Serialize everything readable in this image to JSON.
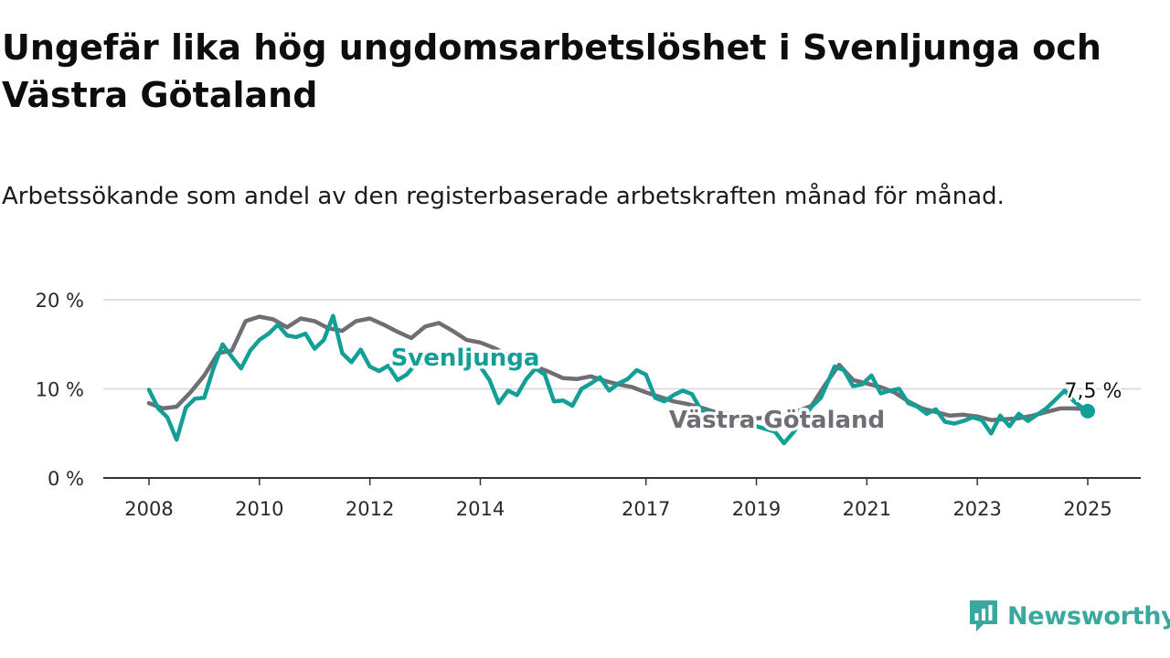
{
  "title": "Ungefär lika hög ungdomsarbetslöshet i Svenljunga och Västra Götaland",
  "subtitle": "Arbetssökande som andel av den registerbaserade arbetskraften månad för månad.",
  "brand": {
    "name": "Newsworthy",
    "icon": "newsworthy-logo-icon",
    "color": "#3aa89e"
  },
  "chart_data": {
    "type": "line",
    "x_ticks": [
      "2008",
      "2010",
      "2012",
      "2014",
      "2017",
      "2019",
      "2021",
      "2023",
      "2025"
    ],
    "y_ticks": [
      "0 %",
      "10 %",
      "20 %"
    ],
    "ylim": [
      0,
      20
    ],
    "grid": true,
    "end_value_label": "7,5 %",
    "series": [
      {
        "name": "Västra Götaland",
        "color": "#6f6e74",
        "points": [
          [
            "2008-01",
            8.4
          ],
          [
            "2008-04",
            7.8
          ],
          [
            "2008-07",
            8.0
          ],
          [
            "2008-10",
            9.6
          ],
          [
            "2009-01",
            11.5
          ],
          [
            "2009-04",
            14.0
          ],
          [
            "2009-07",
            14.3
          ],
          [
            "2009-10",
            17.6
          ],
          [
            "2010-01",
            18.1
          ],
          [
            "2010-04",
            17.8
          ],
          [
            "2010-07",
            16.9
          ],
          [
            "2010-10",
            17.9
          ],
          [
            "2011-01",
            17.6
          ],
          [
            "2011-04",
            16.8
          ],
          [
            "2011-07",
            16.5
          ],
          [
            "2011-10",
            17.6
          ],
          [
            "2012-01",
            17.9
          ],
          [
            "2012-04",
            17.2
          ],
          [
            "2012-07",
            16.4
          ],
          [
            "2012-10",
            15.7
          ],
          [
            "2013-01",
            17.0
          ],
          [
            "2013-04",
            17.4
          ],
          [
            "2013-07",
            16.5
          ],
          [
            "2013-10",
            15.5
          ],
          [
            "2014-01",
            15.2
          ],
          [
            "2014-04",
            14.6
          ],
          [
            "2014-07",
            13.8
          ],
          [
            "2014-10",
            13.4
          ],
          [
            "2015-01",
            12.5
          ],
          [
            "2015-04",
            11.9
          ],
          [
            "2015-07",
            11.2
          ],
          [
            "2015-10",
            11.1
          ],
          [
            "2016-01",
            11.4
          ],
          [
            "2016-04",
            10.9
          ],
          [
            "2016-07",
            10.5
          ],
          [
            "2016-10",
            10.2
          ],
          [
            "2017-01",
            9.6
          ],
          [
            "2017-04",
            9.1
          ],
          [
            "2017-07",
            8.6
          ],
          [
            "2017-10",
            8.3
          ],
          [
            "2018-01",
            7.9
          ],
          [
            "2018-04",
            7.4
          ],
          [
            "2018-07",
            7.2
          ],
          [
            "2018-10",
            6.9
          ],
          [
            "2019-01",
            6.7
          ],
          [
            "2019-04",
            6.8
          ],
          [
            "2019-07",
            7.0
          ],
          [
            "2019-10",
            7.5
          ],
          [
            "2020-01",
            8.1
          ],
          [
            "2020-04",
            10.5
          ],
          [
            "2020-07",
            12.7
          ],
          [
            "2020-10",
            11.0
          ],
          [
            "2021-01",
            10.6
          ],
          [
            "2021-04",
            10.2
          ],
          [
            "2021-07",
            9.6
          ],
          [
            "2021-10",
            8.6
          ],
          [
            "2022-01",
            7.8
          ],
          [
            "2022-04",
            7.4
          ],
          [
            "2022-07",
            7.0
          ],
          [
            "2022-10",
            7.1
          ],
          [
            "2023-01",
            6.9
          ],
          [
            "2023-04",
            6.5
          ],
          [
            "2023-07",
            6.6
          ],
          [
            "2023-10",
            6.7
          ],
          [
            "2024-01",
            7.0
          ],
          [
            "2024-04",
            7.4
          ],
          [
            "2024-07",
            7.8
          ],
          [
            "2024-10",
            7.8
          ],
          [
            "2025-01",
            7.7
          ]
        ]
      },
      {
        "name": "Svenljunga",
        "color": "#139f95",
        "points": [
          [
            "2008-01",
            9.9
          ],
          [
            "2008-03",
            7.8
          ],
          [
            "2008-05",
            6.8
          ],
          [
            "2008-07",
            4.3
          ],
          [
            "2008-09",
            7.9
          ],
          [
            "2008-11",
            8.9
          ],
          [
            "2009-01",
            9.0
          ],
          [
            "2009-03",
            12.3
          ],
          [
            "2009-05",
            15.0
          ],
          [
            "2009-07",
            13.6
          ],
          [
            "2009-09",
            12.3
          ],
          [
            "2009-11",
            14.3
          ],
          [
            "2010-01",
            15.5
          ],
          [
            "2010-03",
            16.2
          ],
          [
            "2010-05",
            17.2
          ],
          [
            "2010-07",
            16.0
          ],
          [
            "2010-09",
            15.8
          ],
          [
            "2010-11",
            16.2
          ],
          [
            "2011-01",
            14.5
          ],
          [
            "2011-03",
            15.5
          ],
          [
            "2011-05",
            18.2
          ],
          [
            "2011-07",
            14.0
          ],
          [
            "2011-09",
            13.0
          ],
          [
            "2011-11",
            14.4
          ],
          [
            "2012-01",
            12.5
          ],
          [
            "2012-03",
            12.0
          ],
          [
            "2012-05",
            12.6
          ],
          [
            "2012-07",
            11.0
          ],
          [
            "2012-09",
            11.6
          ],
          [
            "2012-11",
            12.8
          ],
          [
            "2013-01",
            13.0
          ],
          [
            "2013-04",
            13.3
          ],
          [
            "2013-07",
            12.6
          ],
          [
            "2013-10",
            12.9
          ],
          [
            "2014-01",
            12.5
          ],
          [
            "2014-03",
            11.0
          ],
          [
            "2014-05",
            8.4
          ],
          [
            "2014-07",
            9.8
          ],
          [
            "2014-09",
            9.3
          ],
          [
            "2014-11",
            11.1
          ],
          [
            "2015-01",
            12.3
          ],
          [
            "2015-03",
            11.6
          ],
          [
            "2015-05",
            8.6
          ],
          [
            "2015-07",
            8.7
          ],
          [
            "2015-09",
            8.1
          ],
          [
            "2015-11",
            10.0
          ],
          [
            "2016-01",
            10.6
          ],
          [
            "2016-03",
            11.3
          ],
          [
            "2016-05",
            9.8
          ],
          [
            "2016-07",
            10.6
          ],
          [
            "2016-09",
            11.1
          ],
          [
            "2016-11",
            12.1
          ],
          [
            "2017-01",
            11.6
          ],
          [
            "2017-03",
            9.0
          ],
          [
            "2017-05",
            8.6
          ],
          [
            "2017-07",
            9.3
          ],
          [
            "2017-09",
            9.8
          ],
          [
            "2017-11",
            9.4
          ],
          [
            "2018-01",
            7.6
          ],
          [
            "2019-05",
            5.2
          ],
          [
            "2019-07",
            3.9
          ],
          [
            "2019-09",
            5.1
          ],
          [
            "2020-01",
            8.0
          ],
          [
            "2020-03",
            9.0
          ],
          [
            "2020-06",
            12.5
          ],
          [
            "2020-08",
            12.1
          ],
          [
            "2020-10",
            10.3
          ],
          [
            "2020-12",
            10.5
          ],
          [
            "2021-02",
            11.5
          ],
          [
            "2021-04",
            9.5
          ],
          [
            "2021-06",
            9.8
          ],
          [
            "2021-08",
            10.0
          ],
          [
            "2021-10",
            8.4
          ],
          [
            "2021-12",
            8.0
          ],
          [
            "2022-02",
            7.2
          ],
          [
            "2022-04",
            7.7
          ],
          [
            "2022-06",
            6.3
          ],
          [
            "2022-08",
            6.1
          ],
          [
            "2022-10",
            6.4
          ],
          [
            "2022-12",
            6.8
          ],
          [
            "2023-02",
            6.5
          ],
          [
            "2023-04",
            5.0
          ],
          [
            "2023-06",
            7.0
          ],
          [
            "2023-08",
            5.8
          ],
          [
            "2023-10",
            7.2
          ],
          [
            "2023-12",
            6.4
          ],
          [
            "2024-02",
            7.1
          ],
          [
            "2024-04",
            7.8
          ],
          [
            "2024-06",
            8.8
          ],
          [
            "2024-08",
            9.8
          ],
          [
            "2024-10",
            8.6
          ],
          [
            "2024-12",
            7.8
          ],
          [
            "2025-01",
            7.5
          ]
        ]
      }
    ]
  }
}
